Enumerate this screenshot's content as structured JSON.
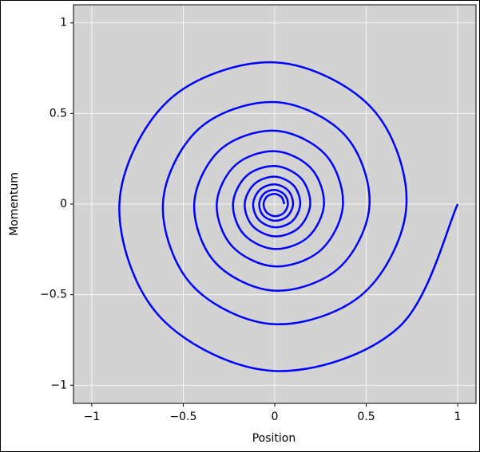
{
  "chart_data": {
    "type": "line",
    "xlabel": "Position",
    "ylabel": "Momentum",
    "xlim": [
      -1.1,
      1.1
    ],
    "ylim": [
      -1.1,
      1.1
    ],
    "xticks": [
      {
        "value": -1,
        "label": "−1"
      },
      {
        "value": -0.5,
        "label": "−0.5"
      },
      0,
      0.5,
      1
    ],
    "yticks": [
      {
        "value": -1,
        "label": "−1"
      },
      {
        "value": -0.5,
        "label": "−0.5"
      },
      0,
      0.5,
      1
    ],
    "grid": true,
    "background": "#d3d3d3",
    "series": [
      {
        "color": "#0000ff",
        "x": [
          1,
          0.679,
          0,
          -0.625,
          -0.849,
          -0.576,
          0,
          0.53,
          0.72,
          0.489,
          0,
          -0.45,
          -0.611,
          -0.415,
          0,
          0.382,
          0.518,
          0.352,
          0,
          -0.324,
          -0.44,
          -0.299,
          0,
          0.275,
          0.373,
          0.253,
          0,
          -0.233,
          -0.317,
          -0.215,
          0,
          0.198,
          0.269,
          0.182,
          0,
          -0.168,
          -0.228,
          -0.155,
          0,
          0.143,
          0.194,
          0.131,
          0,
          -0.121,
          -0.164,
          -0.111,
          0,
          0.103,
          0.139,
          0.095,
          0,
          -0.087,
          -0.118,
          -0.08,
          0,
          0.074,
          0.1,
          0.068,
          0,
          -0.063,
          -0.085,
          -0.058,
          0,
          0.053,
          0.072,
          0.049,
          0,
          -0.045,
          -0.061,
          -0.042,
          0,
          0.038,
          0.052
        ],
        "values": [
          0,
          -0.679,
          -0.921,
          -0.625,
          0,
          0.576,
          0.782,
          0.53,
          0,
          -0.489,
          -0.663,
          -0.45,
          0,
          0.415,
          0.563,
          0.382,
          0,
          -0.352,
          -0.478,
          -0.324,
          0,
          0.299,
          0.405,
          0.275,
          0,
          -0.253,
          -0.344,
          -0.233,
          0,
          0.215,
          0.292,
          0.198,
          0,
          -0.182,
          -0.248,
          -0.168,
          0,
          0.155,
          0.21,
          0.143,
          0,
          -0.131,
          -0.178,
          -0.121,
          0,
          0.111,
          0.151,
          0.103,
          0,
          -0.095,
          -0.128,
          -0.087,
          0,
          0.08,
          0.109,
          0.074,
          0,
          -0.068,
          -0.092,
          -0.063,
          0,
          0.058,
          0.078,
          0.053,
          0,
          -0.049,
          -0.067,
          -0.045,
          0,
          0.042,
          0.056,
          0.038,
          0
        ]
      }
    ]
  }
}
